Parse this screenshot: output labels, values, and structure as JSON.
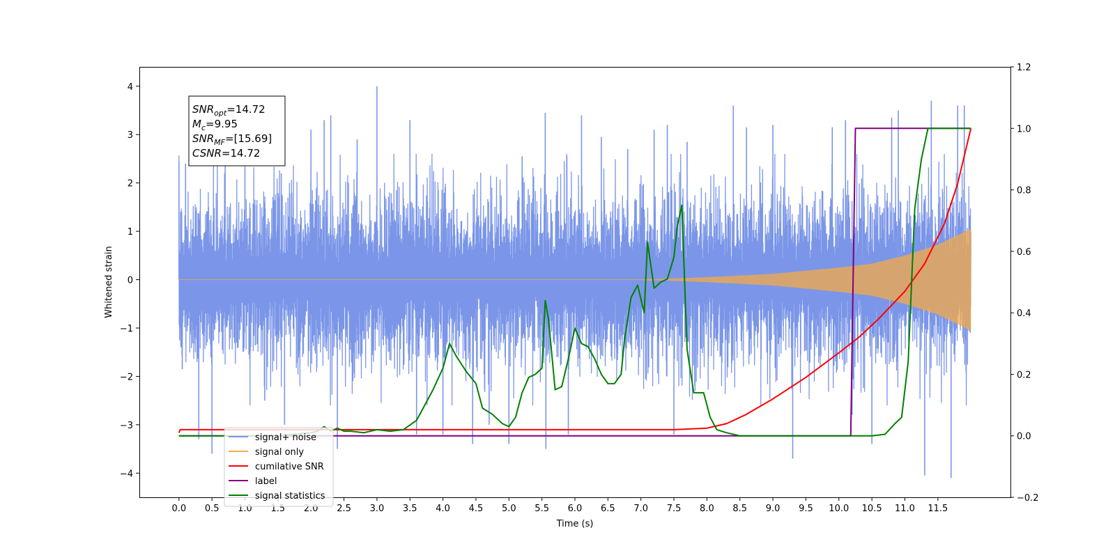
{
  "chart_data": {
    "type": "line",
    "title": "",
    "xlabel": "Time (s)",
    "ylabel": "Whitened strain",
    "xlim": [
      -0.6,
      12.6
    ],
    "ylim": [
      -4.5,
      4.4
    ],
    "ylim_right": [
      -0.2,
      1.2
    ],
    "xticks": [
      0.0,
      0.5,
      1.0,
      1.5,
      2.0,
      2.5,
      3.0,
      3.5,
      4.0,
      4.5,
      5.0,
      5.5,
      6.0,
      6.5,
      7.0,
      7.5,
      8.0,
      8.5,
      9.0,
      9.5,
      10.0,
      10.5,
      11.0,
      11.5
    ],
    "xtick_labels": [
      "0.0",
      "0.5",
      "1.0",
      "1.5",
      "2.0",
      "2.5",
      "3.0",
      "3.5",
      "4.0",
      "4.5",
      "5.0",
      "5.5",
      "6.0",
      "6.5",
      "7.0",
      "7.5",
      "8.0",
      "8.5",
      "9.0",
      "9.5",
      "10.0",
      "10.5",
      "11.0",
      "11.5"
    ],
    "yticks": [
      4,
      3,
      2,
      1,
      0,
      -1,
      -2,
      -3,
      -4
    ],
    "ytick_labels": [
      "4",
      "3",
      "2",
      "1",
      "0",
      "−1",
      "−2",
      "−3",
      "−4"
    ],
    "yticks_right": [
      1.2,
      1.0,
      0.8,
      0.6,
      0.4,
      0.2,
      0.0,
      -0.2
    ],
    "ytick_labels_right": [
      "1.2",
      "1.0",
      "0.8",
      "0.6",
      "0.4",
      "0.2",
      "0.0",
      "−0.2"
    ],
    "grid": false,
    "legend_position": "lower-left",
    "annotation": {
      "lines": [
        {
          "sym": "SNR",
          "sub": "opt",
          "rest": "=14.72"
        },
        {
          "sym": "M",
          "sub": "c",
          "rest": "=9.95"
        },
        {
          "sym": "SNR",
          "sub": "MF",
          "rest": "=[15.69]"
        },
        {
          "sym": "CSNR",
          "sub": "",
          "rest": "=14.72"
        }
      ]
    },
    "series": [
      {
        "name": "signal+ noise",
        "axis": "left",
        "color": "#7b96e8",
        "kind": "noise",
        "x_range": [
          0.0,
          12.0
        ],
        "envelope_typical": 1.45,
        "spikes": [
          {
            "x": 0.0,
            "y": 2.45
          },
          {
            "x": 0.05,
            "y": -1.85
          },
          {
            "x": 0.1,
            "y": 2.4
          },
          {
            "x": 0.3,
            "y": -3.3
          },
          {
            "x": 0.5,
            "y": -3.6
          },
          {
            "x": 0.7,
            "y": 2.65
          },
          {
            "x": 1.0,
            "y": 2.35
          },
          {
            "x": 1.3,
            "y": -2.5
          },
          {
            "x": 1.55,
            "y": 2.2
          },
          {
            "x": 1.6,
            "y": -3.0
          },
          {
            "x": 2.0,
            "y": 3.1
          },
          {
            "x": 2.2,
            "y": 3.3
          },
          {
            "x": 2.3,
            "y": 3.4
          },
          {
            "x": 2.4,
            "y": -3.5
          },
          {
            "x": 2.7,
            "y": 2.9
          },
          {
            "x": 3.0,
            "y": 4.0
          },
          {
            "x": 3.5,
            "y": 3.3
          },
          {
            "x": 3.6,
            "y": -3.2
          },
          {
            "x": 4.0,
            "y": -3.2
          },
          {
            "x": 4.45,
            "y": -3.4
          },
          {
            "x": 4.7,
            "y": -3.0
          },
          {
            "x": 5.0,
            "y": -3.4
          },
          {
            "x": 5.2,
            "y": 2.55
          },
          {
            "x": 5.55,
            "y": 3.45
          },
          {
            "x": 5.56,
            "y": -3.5
          },
          {
            "x": 5.9,
            "y": -3.2
          },
          {
            "x": 6.1,
            "y": 3.4
          },
          {
            "x": 6.4,
            "y": 2.95
          },
          {
            "x": 6.8,
            "y": 2.7
          },
          {
            "x": 7.2,
            "y": 3.1
          },
          {
            "x": 7.4,
            "y": 3.2
          },
          {
            "x": 7.5,
            "y": -3.2
          },
          {
            "x": 7.7,
            "y": 2.85
          },
          {
            "x": 8.4,
            "y": 3.6
          },
          {
            "x": 8.6,
            "y": 3.15
          },
          {
            "x": 9.0,
            "y": 3.2
          },
          {
            "x": 9.3,
            "y": -3.7
          },
          {
            "x": 9.9,
            "y": 3.15
          },
          {
            "x": 10.1,
            "y": 3.3
          },
          {
            "x": 10.2,
            "y": -2.8
          },
          {
            "x": 10.5,
            "y": -3.4
          },
          {
            "x": 10.8,
            "y": 3.35
          },
          {
            "x": 10.9,
            "y": 3.5
          },
          {
            "x": 11.3,
            "y": -4.05
          },
          {
            "x": 11.4,
            "y": 3.7
          },
          {
            "x": 11.7,
            "y": -4.1
          },
          {
            "x": 11.8,
            "y": 3.6
          },
          {
            "x": 11.9,
            "y": 3.6
          }
        ]
      },
      {
        "name": "signal only",
        "axis": "left",
        "color": "#f4a947",
        "kind": "chirp",
        "x_range": [
          0.0,
          12.0
        ],
        "amplitude_points": [
          {
            "x": 0.0,
            "y": 0.0
          },
          {
            "x": 7.0,
            "y": 0.0
          },
          {
            "x": 8.0,
            "y": 0.05
          },
          {
            "x": 9.0,
            "y": 0.12
          },
          {
            "x": 10.0,
            "y": 0.25
          },
          {
            "x": 10.5,
            "y": 0.33
          },
          {
            "x": 11.0,
            "y": 0.5
          },
          {
            "x": 11.5,
            "y": 0.72
          },
          {
            "x": 12.0,
            "y": 1.05
          }
        ]
      },
      {
        "name": "cumilative SNR",
        "axis": "right",
        "color": "#ff0000",
        "x": [
          0.0,
          0.02,
          1.0,
          2.0,
          3.0,
          4.0,
          5.0,
          6.0,
          7.0,
          7.5,
          8.0,
          8.3,
          8.6,
          9.0,
          9.5,
          10.0,
          10.3,
          10.6,
          11.0,
          11.3,
          11.6,
          11.8,
          12.0
        ],
        "values": [
          0.01,
          0.02,
          0.02,
          0.02,
          0.02,
          0.02,
          0.02,
          0.02,
          0.02,
          0.02,
          0.025,
          0.04,
          0.07,
          0.12,
          0.19,
          0.27,
          0.32,
          0.38,
          0.47,
          0.56,
          0.69,
          0.82,
          1.0
        ]
      },
      {
        "name": "label",
        "axis": "right",
        "color": "#7f007f",
        "x": [
          0.0,
          10.18,
          10.25,
          12.0
        ],
        "values": [
          0.0,
          0.0,
          1.0,
          1.0
        ]
      },
      {
        "name": "signal statistics",
        "axis": "right",
        "color": "#008000",
        "x": [
          0.0,
          0.5,
          1.0,
          1.5,
          2.0,
          2.1,
          2.2,
          2.3,
          2.4,
          2.5,
          2.6,
          2.8,
          3.0,
          3.2,
          3.4,
          3.6,
          3.7,
          3.85,
          4.0,
          4.1,
          4.2,
          4.35,
          4.5,
          4.6,
          4.75,
          4.9,
          5.0,
          5.1,
          5.2,
          5.3,
          5.4,
          5.5,
          5.55,
          5.6,
          5.7,
          5.8,
          5.9,
          6.0,
          6.1,
          6.2,
          6.3,
          6.4,
          6.5,
          6.6,
          6.7,
          6.75,
          6.85,
          6.95,
          7.05,
          7.1,
          7.2,
          7.3,
          7.4,
          7.5,
          7.55,
          7.62,
          7.7,
          7.8,
          7.95,
          8.05,
          8.15,
          8.3,
          8.5,
          9.0,
          10.0,
          10.5,
          10.7,
          10.85,
          10.95,
          11.05,
          11.15,
          11.25,
          11.35,
          12.0
        ],
        "values": [
          0.0,
          0.0,
          0.0,
          0.0,
          0.01,
          0.015,
          0.03,
          0.015,
          0.025,
          0.015,
          0.015,
          0.01,
          0.02,
          0.015,
          0.02,
          0.05,
          0.09,
          0.15,
          0.22,
          0.3,
          0.26,
          0.21,
          0.17,
          0.09,
          0.07,
          0.04,
          0.03,
          0.06,
          0.14,
          0.19,
          0.2,
          0.22,
          0.44,
          0.38,
          0.15,
          0.16,
          0.25,
          0.35,
          0.3,
          0.29,
          0.25,
          0.2,
          0.17,
          0.17,
          0.2,
          0.31,
          0.45,
          0.49,
          0.4,
          0.63,
          0.48,
          0.5,
          0.51,
          0.58,
          0.68,
          0.75,
          0.28,
          0.14,
          0.14,
          0.06,
          0.02,
          0.01,
          0.0,
          0.0,
          0.0,
          0.0,
          0.005,
          0.04,
          0.06,
          0.24,
          0.74,
          0.9,
          1.0,
          1.0
        ]
      }
    ],
    "legend": [
      {
        "label": "signal+ noise",
        "color": "#7b96e8"
      },
      {
        "label": "signal only",
        "color": "#f4a947"
      },
      {
        "label": "cumilative SNR",
        "color": "#ff0000"
      },
      {
        "label": "label",
        "color": "#7f007f"
      },
      {
        "label": "signal statistics",
        "color": "#008000"
      }
    ]
  }
}
